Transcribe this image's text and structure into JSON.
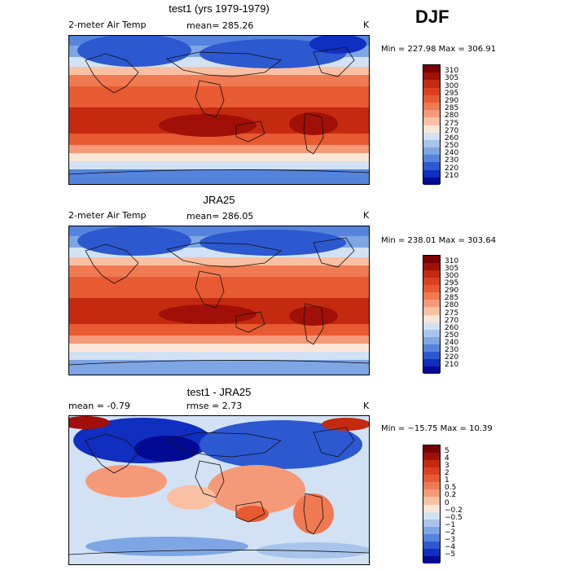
{
  "season": "DJF",
  "panels": [
    {
      "title": "test1 (yrs 1979-1979)",
      "left_label": "2-meter Air Temp",
      "center_label": "mean= 285.26",
      "unit": "K",
      "minmax": "Min = 227.98 Max = 306.91"
    },
    {
      "title": "JRA25",
      "left_label": "2-meter Air Temp",
      "center_label": "mean= 286.05",
      "unit": "K",
      "minmax": "Min = 238.01 Max = 303.64"
    },
    {
      "title": "test1 - JRA25",
      "left_label": "mean =  -0.79",
      "center_label": "rmse =   2.73",
      "unit": "K",
      "minmax": "Min = −15.75 Max =  10.39"
    }
  ],
  "colorbar_abs": {
    "labels": [
      "310",
      "305",
      "300",
      "295",
      "290",
      "285",
      "280",
      "275",
      "270",
      "260",
      "250",
      "240",
      "230",
      "220",
      "210"
    ],
    "colors": [
      "#7a0000",
      "#a01008",
      "#c42a10",
      "#dc4020",
      "#e85a32",
      "#f07a52",
      "#f59a78",
      "#fac0a4",
      "#fbe6d6",
      "#d2e2f4",
      "#a8c4ec",
      "#7ea6e4",
      "#5484dc",
      "#2c58d0",
      "#102ec0",
      "#020a94"
    ]
  },
  "colorbar_diff": {
    "labels": [
      "5",
      "4",
      "3",
      "2",
      "1",
      "0.5",
      "0.2",
      "0",
      "−0.2",
      "−0.5",
      "−1",
      "−2",
      "−3",
      "−4",
      "−5"
    ],
    "colors": [
      "#7a0000",
      "#a01008",
      "#c42a10",
      "#dc4020",
      "#e85a32",
      "#f07a52",
      "#f59a78",
      "#fac0a4",
      "#fbe6d6",
      "#d2e2f4",
      "#a8c4ec",
      "#7ea6e4",
      "#5484dc",
      "#2c58d0",
      "#102ec0",
      "#020a94"
    ]
  }
}
